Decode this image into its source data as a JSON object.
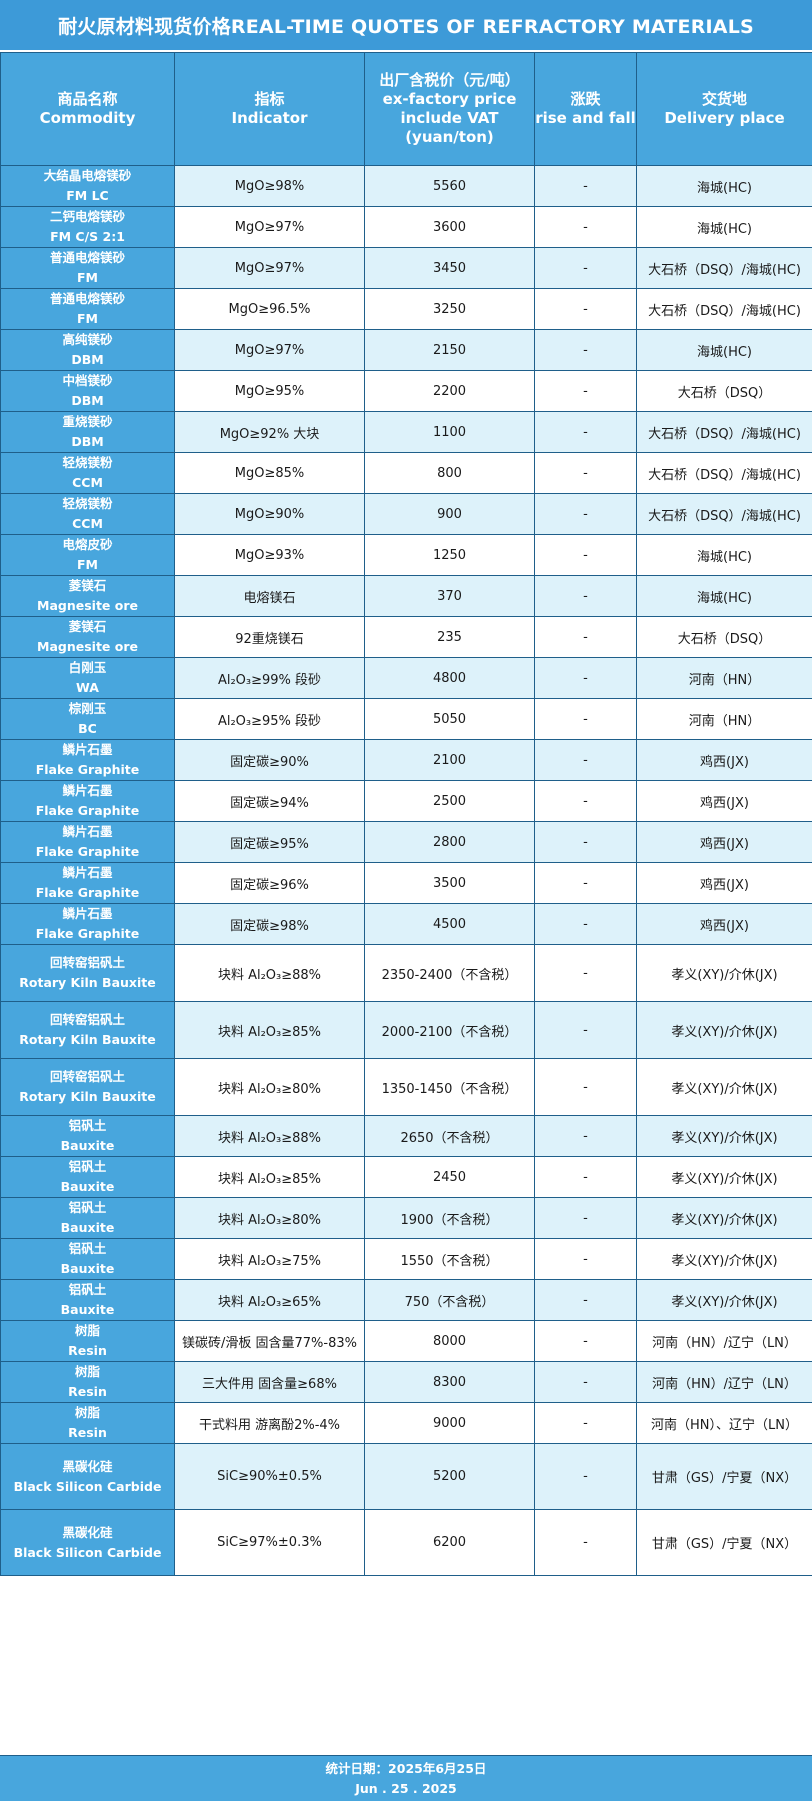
{
  "title": "耐火原材料现货价格REAL-TIME QUOTES OF REFRACTORY MATERIALS",
  "headers": [
    {
      "cn": "商品名称",
      "en": "Commodity"
    },
    {
      "cn": "指标",
      "en": "Indicator"
    },
    {
      "cn": "出厂含税价（元/吨）",
      "en": "ex-factory price include VAT (yuan/ton)"
    },
    {
      "cn": "涨跌",
      "en": "rise and fall"
    },
    {
      "cn": "交货地",
      "en": "Delivery place"
    }
  ],
  "rows": [
    {
      "cn": "大结晶电熔镁砂",
      "en": "FM LC",
      "indicator": "MgO≥98%",
      "price": "5560",
      "change": "-",
      "place": "海城(HC)"
    },
    {
      "cn": "二钙电熔镁砂",
      "en": "FM C/S 2:1",
      "indicator": "MgO≥97%",
      "price": "3600",
      "change": "-",
      "place": "海城(HC)"
    },
    {
      "cn": "普通电熔镁砂",
      "en": "FM",
      "indicator": "MgO≥97%",
      "price": "3450",
      "change": "-",
      "place": "大石桥（DSQ）/海城(HC)"
    },
    {
      "cn": "普通电熔镁砂",
      "en": "FM",
      "indicator": "MgO≥96.5%",
      "price": "3250",
      "change": "-",
      "place": "大石桥（DSQ）/海城(HC)"
    },
    {
      "cn": "高纯镁砂",
      "en": "DBM",
      "indicator": "MgO≥97%",
      "price": "2150",
      "change": "-",
      "place": "海城(HC)"
    },
    {
      "cn": "中档镁砂",
      "en": "DBM",
      "indicator": "MgO≥95%",
      "price": "2200",
      "change": "-",
      "place": "大石桥（DSQ）"
    },
    {
      "cn": "重烧镁砂",
      "en": "DBM",
      "indicator": "MgO≥92% 大块",
      "price": "1100",
      "change": "-",
      "place": "大石桥（DSQ）/海城(HC)"
    },
    {
      "cn": "轻烧镁粉",
      "en": "CCM",
      "indicator": "MgO≥85%",
      "price": "800",
      "change": "-",
      "place": "大石桥（DSQ）/海城(HC)"
    },
    {
      "cn": "轻烧镁粉",
      "en": "CCM",
      "indicator": "MgO≥90%",
      "price": "900",
      "change": "-",
      "place": "大石桥（DSQ）/海城(HC)"
    },
    {
      "cn": "电熔皮砂",
      "en": "FM",
      "indicator": "MgO≥93%",
      "price": "1250",
      "change": "-",
      "place": "海城(HC)"
    },
    {
      "cn": "菱镁石",
      "en": "Magnesite ore",
      "indicator": "电熔镁石",
      "price": "370",
      "change": "-",
      "place": "海城(HC)"
    },
    {
      "cn": "菱镁石",
      "en": "Magnesite ore",
      "indicator": "92重烧镁石",
      "price": "235",
      "change": "-",
      "place": "大石桥（DSQ）"
    },
    {
      "cn": "白刚玉",
      "en": "WA",
      "indicator": "Al₂O₃≥99% 段砂",
      "price": "4800",
      "change": "-",
      "place": "河南（HN）"
    },
    {
      "cn": "棕刚玉",
      "en": "BC",
      "indicator": "Al₂O₃≥95% 段砂",
      "price": "5050",
      "change": "-",
      "place": "河南（HN）"
    },
    {
      "cn": "鳞片石墨",
      "en": "Flake Graphite",
      "indicator": "固定碳≥90%",
      "price": "2100",
      "change": "-",
      "place": "鸡西(JX)"
    },
    {
      "cn": "鳞片石墨",
      "en": "Flake Graphite",
      "indicator": "固定碳≥94%",
      "price": "2500",
      "change": "-",
      "place": "鸡西(JX)"
    },
    {
      "cn": "鳞片石墨",
      "en": "Flake Graphite",
      "indicator": "固定碳≥95%",
      "price": "2800",
      "change": "-",
      "place": "鸡西(JX)"
    },
    {
      "cn": "鳞片石墨",
      "en": "Flake Graphite",
      "indicator": "固定碳≥96%",
      "price": "3500",
      "change": "-",
      "place": "鸡西(JX)"
    },
    {
      "cn": "鳞片石墨",
      "en": "Flake Graphite",
      "indicator": "固定碳≥98%",
      "price": "4500",
      "change": "-",
      "place": "鸡西(JX)"
    },
    {
      "cn": "回转窑铝矾土",
      "en": "Rotary Kiln Bauxite",
      "indicator": "块料 Al₂O₃≥88%",
      "price": "2350-2400（不含税）",
      "change": "-",
      "place": "孝义(XY)/介休(JX)"
    },
    {
      "cn": "回转窑铝矾土",
      "en": "Rotary Kiln Bauxite",
      "indicator": "块料 Al₂O₃≥85%",
      "price": "2000-2100（不含税）",
      "change": "-",
      "place": "孝义(XY)/介休(JX)"
    },
    {
      "cn": "回转窑铝矾土",
      "en": "Rotary Kiln Bauxite",
      "indicator": "块料 Al₂O₃≥80%",
      "price": "1350-1450（不含税）",
      "change": "-",
      "place": "孝义(XY)/介休(JX)"
    },
    {
      "cn": "铝矾土",
      "en": "Bauxite",
      "indicator": "块料 Al₂O₃≥88%",
      "price": "2650（不含税）",
      "change": "-",
      "place": "孝义(XY)/介休(JX)"
    },
    {
      "cn": "铝矾土",
      "en": "Bauxite",
      "indicator": "块料 Al₂O₃≥85%",
      "price": "2450",
      "change": "-",
      "place": "孝义(XY)/介休(JX)"
    },
    {
      "cn": "铝矾土",
      "en": "Bauxite",
      "indicator": "块料 Al₂O₃≥80%",
      "price": "1900（不含税）",
      "change": "-",
      "place": "孝义(XY)/介休(JX)"
    },
    {
      "cn": "铝矾土",
      "en": "Bauxite",
      "indicator": "块料 Al₂O₃≥75%",
      "price": "1550（不含税）",
      "change": "-",
      "place": "孝义(XY)/介休(JX)"
    },
    {
      "cn": "铝矾土",
      "en": "Bauxite",
      "indicator": "块料 Al₂O₃≥65%",
      "price": "750（不含税）",
      "change": "-",
      "place": "孝义(XY)/介休(JX)"
    },
    {
      "cn": "树脂",
      "en": "Resin",
      "indicator": "镁碳砖/滑板 固含量77%-83%",
      "price": "8000",
      "change": "-",
      "place": "河南（HN）/辽宁（LN）"
    },
    {
      "cn": "树脂",
      "en": "Resin",
      "indicator": "三大件用 固含量≥68%",
      "price": "8300",
      "change": "-",
      "place": "河南（HN）/辽宁（LN）"
    },
    {
      "cn": "树脂",
      "en": "Resin",
      "indicator": "干式料用 游离酚2%-4%",
      "price": "9000",
      "change": "-",
      "place": "河南（HN）、辽宁（LN）"
    },
    {
      "cn": "黑碳化硅",
      "en": "Black Silicon Carbide",
      "indicator": "SiC≥90%±0.5%",
      "price": "5200",
      "change": "-",
      "place": "甘肃（GS）/宁夏（NX）"
    },
    {
      "cn": "黑碳化硅",
      "en": "Black Silicon Carbide",
      "indicator": "SiC≥97%±0.3%",
      "price": "6200",
      "change": "-",
      "place": "甘肃（GS）/宁夏（NX）"
    }
  ],
  "footer": {
    "date_cn": "统计日期：2025年6月25日",
    "date_en": "Jun . 25 . 2025"
  }
}
